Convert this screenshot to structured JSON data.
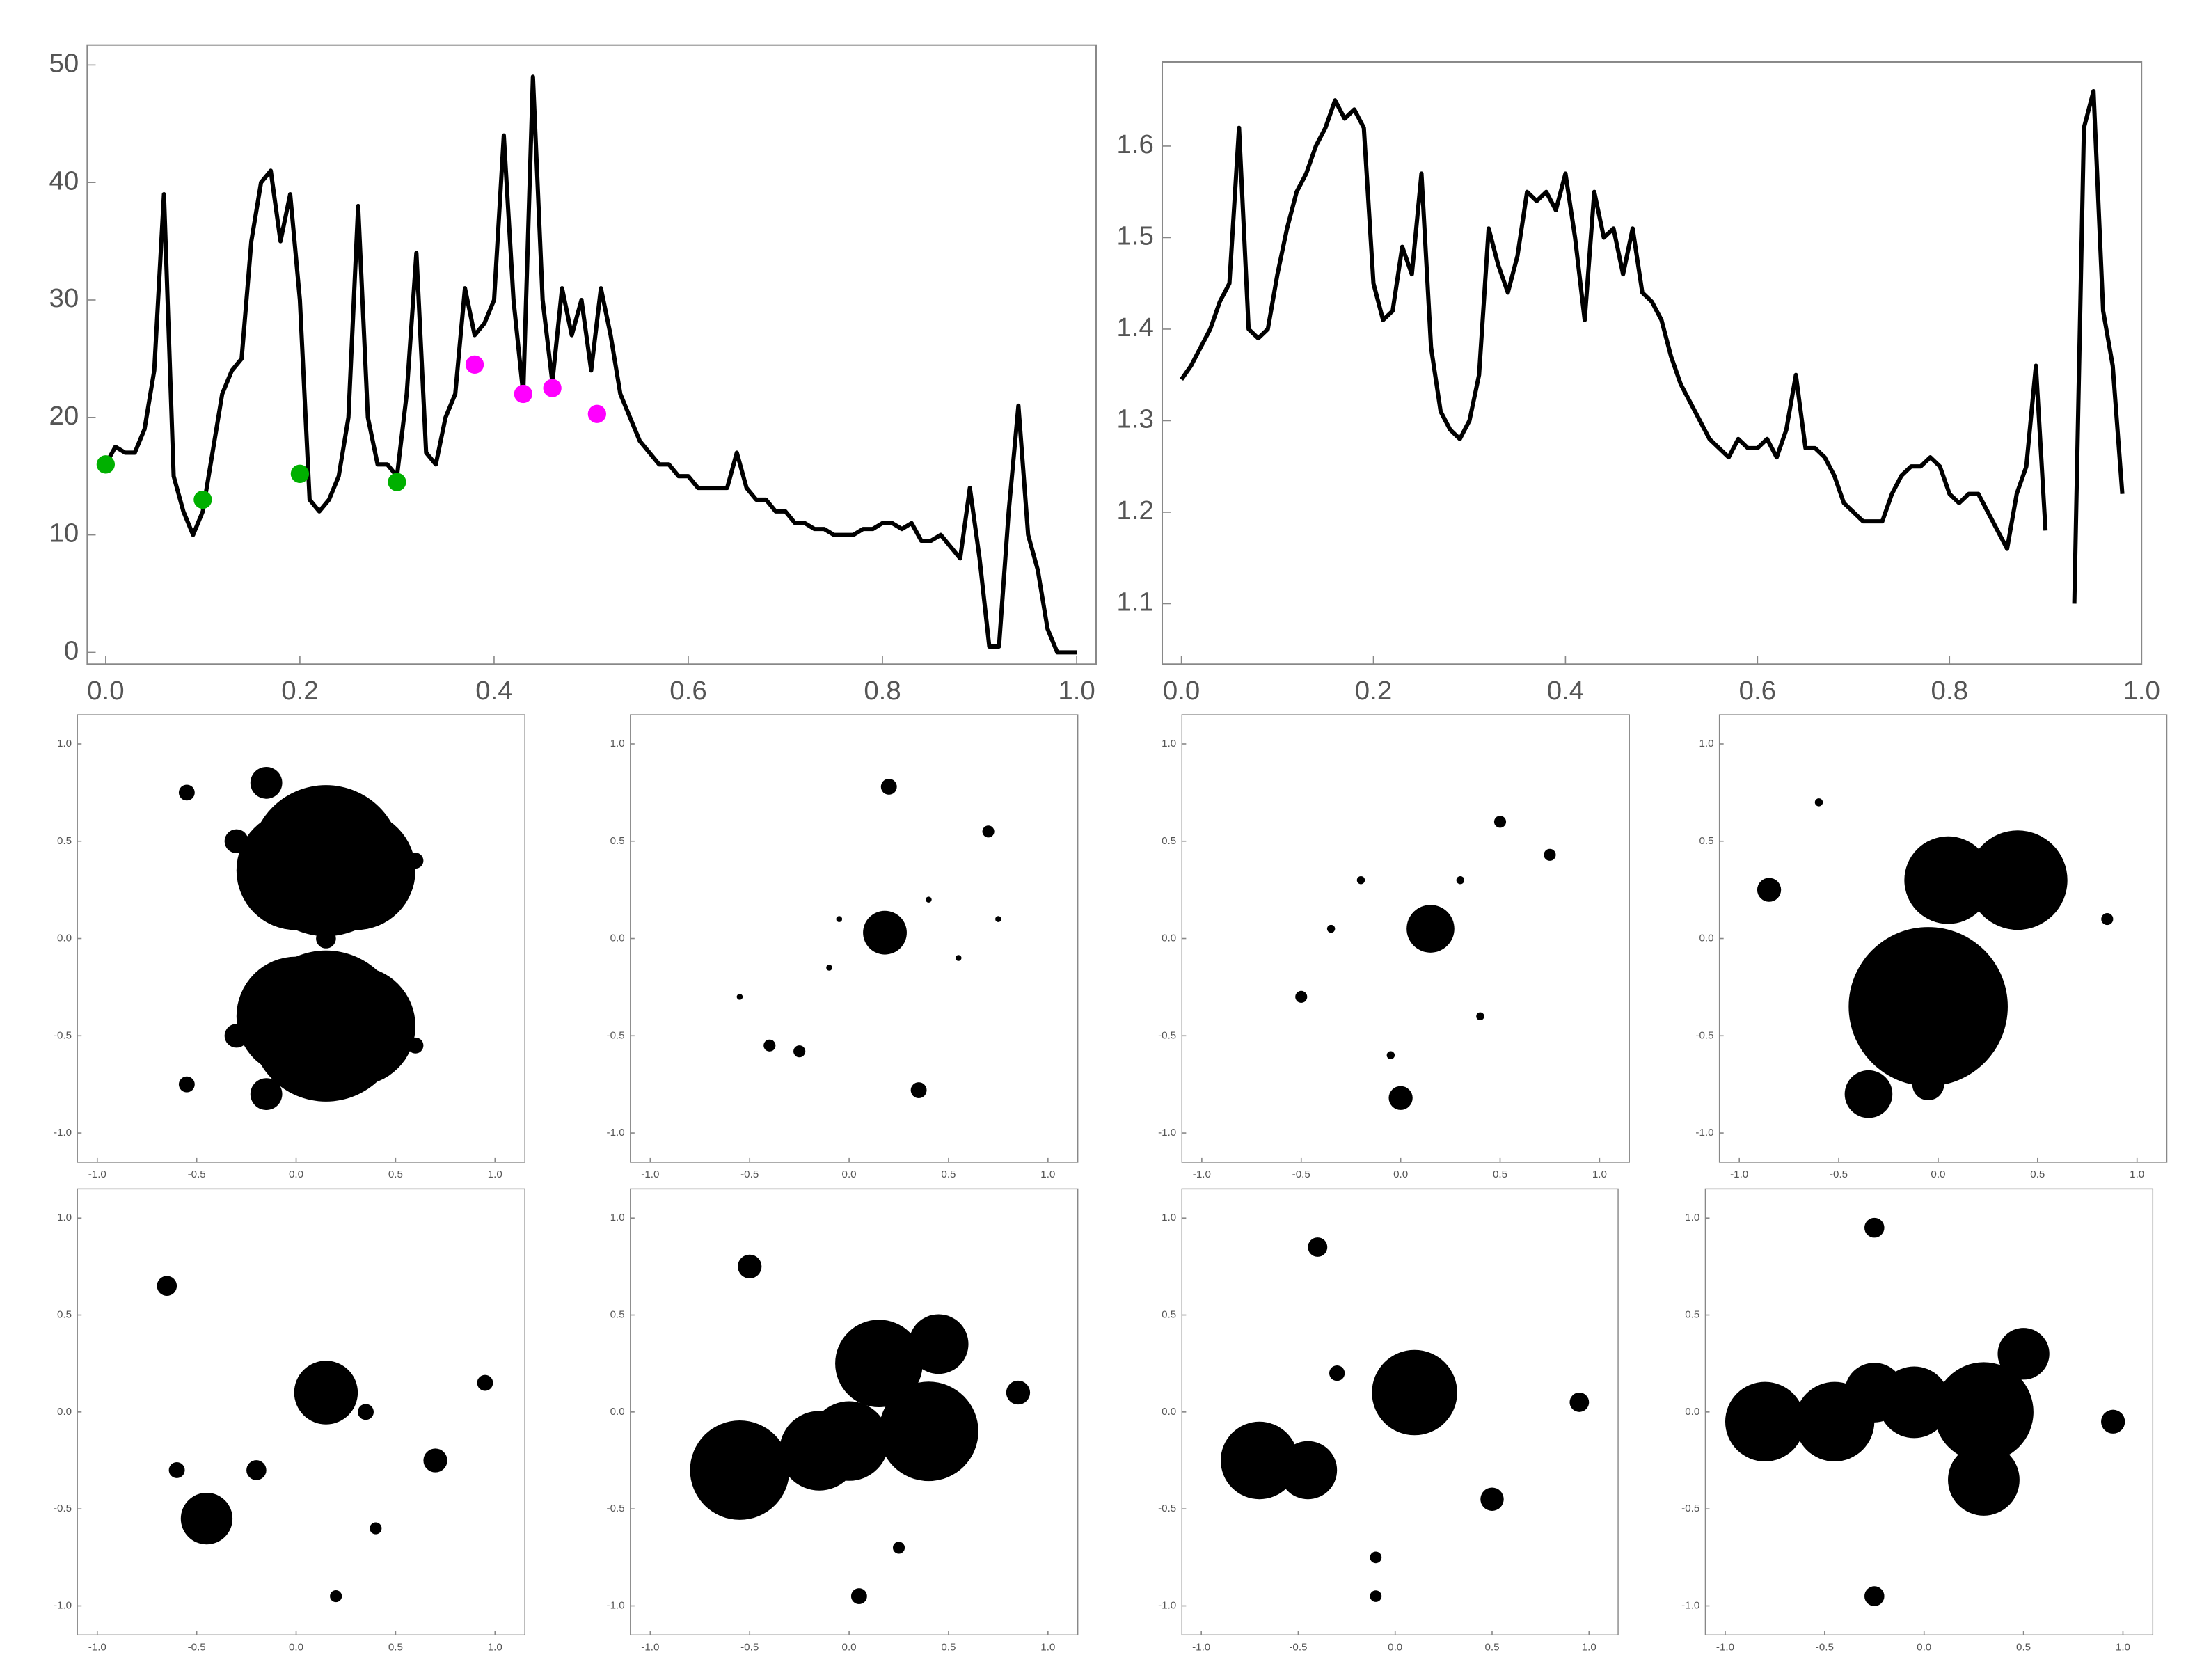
{
  "chart_data": [
    {
      "type": "line",
      "xlim": [
        -0.019,
        1.02
      ],
      "ylim": [
        -1,
        51.7
      ],
      "xticks": [
        {
          "value": 0,
          "label": "0.0"
        },
        0.2,
        0.4,
        0.6,
        0.8,
        {
          "value": 1,
          "label": "1.0"
        }
      ],
      "yticks": [
        0,
        10,
        20,
        30,
        40,
        50
      ],
      "x": [
        0,
        0.01,
        0.02,
        0.03,
        0.04,
        0.05,
        0.06,
        0.07,
        0.08,
        0.09,
        0.1,
        0.11,
        0.12,
        0.13,
        0.14,
        0.15,
        0.16,
        0.17,
        0.18,
        0.19,
        0.2,
        0.21,
        0.22,
        0.23,
        0.24,
        0.25,
        0.26,
        0.27,
        0.28,
        0.29,
        0.3,
        0.31,
        0.32,
        0.33,
        0.34,
        0.35,
        0.36,
        0.37,
        0.38,
        0.39,
        0.4,
        0.41,
        0.42,
        0.43,
        0.44,
        0.45,
        0.46,
        0.47,
        0.48,
        0.49,
        0.5,
        0.51,
        0.52,
        0.53,
        0.54,
        0.55,
        0.56,
        0.57,
        0.58,
        0.59,
        0.6,
        0.61,
        0.62,
        0.63,
        0.64,
        0.65,
        0.66,
        0.67,
        0.68,
        0.69,
        0.7,
        0.71,
        0.72,
        0.73,
        0.74,
        0.75,
        0.76,
        0.77,
        0.78,
        0.79,
        0.8,
        0.81,
        0.82,
        0.83,
        0.84,
        0.85,
        0.86,
        0.87,
        0.88,
        0.89,
        0.9,
        0.91,
        0.92,
        0.93,
        0.94,
        0.95,
        0.96,
        0.97,
        0.98,
        0.99,
        1
      ],
      "series": [
        {
          "color": "#000000",
          "values": [
            16,
            17.5,
            17,
            17,
            19,
            24,
            39,
            15,
            12,
            10,
            12,
            17,
            22,
            24,
            25,
            35,
            40,
            41,
            35,
            39,
            30,
            13,
            12,
            13,
            15,
            20,
            38,
            20,
            16,
            16,
            15,
            22,
            34,
            17,
            16,
            20,
            22,
            31,
            27,
            28,
            30,
            44,
            30,
            22,
            49,
            30,
            23,
            31,
            27,
            30,
            24,
            31,
            27,
            22,
            20,
            18,
            17,
            16,
            16,
            15,
            15,
            14,
            14,
            14,
            14,
            17,
            14,
            13,
            13,
            12,
            12,
            11,
            11,
            10.5,
            10.5,
            10,
            10,
            10,
            10.5,
            10.5,
            11,
            11,
            10.5,
            11,
            9.5,
            9.5,
            10,
            9,
            8,
            14,
            8,
            0.5,
            0.5,
            12,
            21,
            10,
            7,
            2,
            0,
            0,
            0
          ]
        }
      ],
      "points": [
        {
          "color": "#00b000",
          "x": [
            0,
            0.1,
            0.2,
            0.3
          ],
          "values": [
            16,
            13,
            15.2,
            14.5
          ]
        },
        {
          "color": "#ff00ff",
          "x": [
            0.38,
            0.43,
            0.46,
            0.506
          ],
          "values": [
            24.5,
            22,
            22.5,
            20.3
          ]
        }
      ]
    },
    {
      "type": "line",
      "xlim": [
        -0.02,
        1.0
      ],
      "ylim": [
        1.034,
        1.692
      ],
      "xticks": [
        {
          "value": 0,
          "label": "0.0"
        },
        0.2,
        0.4,
        0.6,
        0.8,
        {
          "value": 1,
          "label": "1.0"
        }
      ],
      "yticks": [
        1.1,
        1.2,
        1.3,
        1.4,
        1.5,
        1.6
      ],
      "x": [
        0,
        0.01,
        0.02,
        0.03,
        0.04,
        0.05,
        0.06,
        0.07,
        0.08,
        0.09,
        0.1,
        0.11,
        0.12,
        0.13,
        0.14,
        0.15,
        0.16,
        0.17,
        0.18,
        0.19,
        0.2,
        0.21,
        0.22,
        0.23,
        0.24,
        0.25,
        0.26,
        0.27,
        0.28,
        0.29,
        0.3,
        0.31,
        0.32,
        0.33,
        0.34,
        0.35,
        0.36,
        0.37,
        0.38,
        0.39,
        0.4,
        0.41,
        0.42,
        0.43,
        0.44,
        0.45,
        0.46,
        0.47,
        0.48,
        0.49,
        0.5,
        0.51,
        0.52,
        0.53,
        0.54,
        0.55,
        0.56,
        0.57,
        0.58,
        0.59,
        0.6,
        0.61,
        0.62,
        0.63,
        0.64,
        0.65,
        0.66,
        0.67,
        0.68,
        0.69,
        0.7,
        0.71,
        0.72,
        0.73,
        0.74,
        0.75,
        0.76,
        0.77,
        0.78,
        0.79,
        0.8,
        0.81,
        0.82,
        0.83,
        0.84,
        0.85,
        0.86,
        0.87,
        0.88,
        0.89,
        0.9,
        0.91,
        0.92,
        0.93,
        0.94,
        0.95,
        0.96,
        0.97,
        0.98,
        0.99,
        1
      ],
      "series": [
        {
          "color": "#000000",
          "values": [
            1.345,
            1.36,
            1.38,
            1.4,
            1.43,
            1.45,
            1.62,
            1.4,
            1.39,
            1.4,
            1.46,
            1.51,
            1.55,
            1.57,
            1.6,
            1.62,
            1.65,
            1.63,
            1.64,
            1.62,
            1.45,
            1.41,
            1.42,
            1.49,
            1.46,
            1.57,
            1.38,
            1.31,
            1.29,
            1.28,
            1.3,
            1.35,
            1.51,
            1.47,
            1.44,
            1.48,
            1.55,
            1.54,
            1.55,
            1.53,
            1.57,
            1.5,
            1.41,
            1.55,
            1.5,
            1.51,
            1.46,
            1.51,
            1.44,
            1.43,
            1.41,
            1.37,
            1.34,
            1.32,
            1.3,
            1.28,
            1.27,
            1.26,
            1.28,
            1.27,
            1.27,
            1.28,
            1.26,
            1.29,
            1.35,
            1.27,
            1.27,
            1.26,
            1.24,
            1.21,
            1.2,
            1.19,
            1.19,
            1.19,
            1.22,
            1.24,
            1.25,
            1.25,
            1.26,
            1.25,
            1.22,
            1.21,
            1.22,
            1.22,
            1.2,
            1.18,
            1.16,
            1.22,
            1.25,
            1.36,
            1.18,
            null,
            null,
            1.1,
            1.62,
            1.66,
            1.42,
            1.36,
            1.22,
            null,
            null
          ]
        }
      ]
    },
    {
      "type": "scatter",
      "xlim": [
        -1.1,
        1.15
      ],
      "ylim": [
        -1.15,
        1.15
      ],
      "xticks": [
        {
          "value": -1,
          "label": "-1.0"
        },
        -0.5,
        {
          "value": 0,
          "label": "0.0"
        },
        0.5,
        {
          "value": 1,
          "label": "1.0"
        }
      ],
      "yticks": [
        {
          "value": -1,
          "label": "-1.0"
        },
        -0.5,
        {
          "value": 0,
          "label": "0.0"
        },
        0.5,
        {
          "value": 1,
          "label": "1.0"
        }
      ],
      "x": [
        0.15,
        0.0,
        0.3,
        0.15,
        0.0,
        0.3,
        -0.15,
        -0.15,
        -0.55,
        -0.55,
        0.6,
        0.6,
        -0.3,
        -0.3,
        0.15
      ],
      "y": [
        0.4,
        0.35,
        0.35,
        -0.45,
        -0.4,
        -0.45,
        0.8,
        -0.8,
        0.75,
        -0.75,
        0.4,
        -0.55,
        0.5,
        -0.5,
        0.0
      ],
      "sizes": [
        0.38,
        0.3,
        0.3,
        0.38,
        0.3,
        0.3,
        0.08,
        0.08,
        0.04,
        0.04,
        0.04,
        0.04,
        0.06,
        0.06,
        0.05
      ]
    },
    {
      "type": "scatter",
      "xlim": [
        -1.1,
        1.15
      ],
      "ylim": [
        -1.15,
        1.15
      ],
      "xticks": [
        {
          "value": -1,
          "label": "-1.0"
        },
        -0.5,
        {
          "value": 0,
          "label": "0.0"
        },
        0.5,
        {
          "value": 1,
          "label": "1.0"
        }
      ],
      "yticks": [
        {
          "value": -1,
          "label": "-1.0"
        },
        -0.5,
        {
          "value": 0,
          "label": "0.0"
        },
        0.5,
        {
          "value": 1,
          "label": "1.0"
        }
      ],
      "x": [
        0.18,
        0.35,
        0.2,
        0.7,
        -0.4,
        -0.25,
        -0.05,
        0.4,
        -0.1,
        0.55,
        -0.55,
        0.75
      ],
      "y": [
        0.03,
        -0.78,
        0.78,
        0.55,
        -0.55,
        -0.58,
        0.1,
        0.2,
        -0.15,
        -0.1,
        -0.3,
        0.1
      ],
      "sizes": [
        0.11,
        0.04,
        0.04,
        0.03,
        0.03,
        0.03,
        0.015,
        0.015,
        0.015,
        0.015,
        0.015,
        0.015
      ]
    },
    {
      "type": "scatter",
      "xlim": [
        -1.1,
        1.15
      ],
      "ylim": [
        -1.15,
        1.15
      ],
      "xticks": [
        {
          "value": -1,
          "label": "-1.0"
        },
        -0.5,
        {
          "value": 0,
          "label": "0.0"
        },
        0.5,
        {
          "value": 1,
          "label": "1.0"
        }
      ],
      "yticks": [
        {
          "value": -1,
          "label": "-1.0"
        },
        -0.5,
        {
          "value": 0,
          "label": "0.0"
        },
        0.5,
        {
          "value": 1,
          "label": "1.0"
        }
      ],
      "x": [
        0.15,
        0.0,
        0.75,
        -0.5,
        0.5,
        -0.2,
        0.4,
        -0.05,
        0.3,
        -0.35
      ],
      "y": [
        0.05,
        -0.82,
        0.43,
        -0.3,
        0.6,
        0.3,
        -0.4,
        -0.6,
        0.3,
        0.05
      ],
      "sizes": [
        0.12,
        0.06,
        0.03,
        0.03,
        0.03,
        0.02,
        0.02,
        0.02,
        0.02,
        0.02
      ]
    },
    {
      "type": "scatter",
      "xlim": [
        -1.1,
        1.15
      ],
      "ylim": [
        -1.15,
        1.15
      ],
      "xticks": [
        {
          "value": -1,
          "label": "-1.0"
        },
        -0.5,
        {
          "value": 0,
          "label": "0.0"
        },
        0.5,
        {
          "value": 1,
          "label": "1.0"
        }
      ],
      "yticks": [
        {
          "value": -1,
          "label": "-1.0"
        },
        -0.5,
        {
          "value": 0,
          "label": "0.0"
        },
        0.5,
        {
          "value": 1,
          "label": "1.0"
        }
      ],
      "x": [
        -0.05,
        0.05,
        0.4,
        -0.35,
        -0.05,
        -0.85,
        -0.6,
        0.85
      ],
      "y": [
        -0.35,
        0.3,
        0.3,
        -0.8,
        -0.75,
        0.25,
        0.7,
        0.1
      ],
      "sizes": [
        0.4,
        0.22,
        0.25,
        0.12,
        0.08,
        0.06,
        0.02,
        0.03
      ]
    },
    {
      "type": "scatter",
      "xlim": [
        -1.1,
        1.15
      ],
      "ylim": [
        -1.15,
        1.15
      ],
      "xticks": [
        {
          "value": -1,
          "label": "-1.0"
        },
        -0.5,
        {
          "value": 0,
          "label": "0.0"
        },
        0.5,
        {
          "value": 1,
          "label": "1.0"
        }
      ],
      "yticks": [
        {
          "value": -1,
          "label": "-1.0"
        },
        -0.5,
        {
          "value": 0,
          "label": "0.0"
        },
        0.5,
        {
          "value": 1,
          "label": "1.0"
        }
      ],
      "x": [
        0.15,
        -0.45,
        -0.65,
        0.7,
        0.35,
        0.95,
        -0.6,
        0.2,
        0.4,
        -0.2
      ],
      "y": [
        0.1,
        -0.55,
        0.65,
        -0.25,
        0.0,
        0.15,
        -0.3,
        -0.95,
        -0.6,
        -0.3
      ],
      "sizes": [
        0.16,
        0.13,
        0.05,
        0.06,
        0.04,
        0.04,
        0.04,
        0.03,
        0.03,
        0.05
      ]
    },
    {
      "type": "scatter",
      "xlim": [
        -1.1,
        1.15
      ],
      "ylim": [
        -1.15,
        1.15
      ],
      "xticks": [
        {
          "value": -1,
          "label": "-1.0"
        },
        -0.5,
        {
          "value": 0,
          "label": "0.0"
        },
        0.5,
        {
          "value": 1,
          "label": "1.0"
        }
      ],
      "yticks": [
        {
          "value": -1,
          "label": "-1.0"
        },
        -0.5,
        {
          "value": 0,
          "label": "0.0"
        },
        0.5,
        {
          "value": 1,
          "label": "1.0"
        }
      ],
      "x": [
        -0.55,
        -0.15,
        0.15,
        0.45,
        0.4,
        0.0,
        -0.5,
        0.85,
        0.05,
        0.25
      ],
      "y": [
        -0.3,
        -0.2,
        0.25,
        0.35,
        -0.1,
        -0.15,
        0.75,
        0.1,
        -0.95,
        -0.7
      ],
      "sizes": [
        0.25,
        0.2,
        0.22,
        0.15,
        0.25,
        0.2,
        0.06,
        0.06,
        0.04,
        0.03
      ]
    },
    {
      "type": "scatter",
      "xlim": [
        -1.1,
        1.15
      ],
      "ylim": [
        -1.15,
        1.15
      ],
      "xticks": [
        {
          "value": -1,
          "label": "-1.0"
        },
        -0.5,
        {
          "value": 0,
          "label": "0.0"
        },
        0.5,
        {
          "value": 1,
          "label": "1.0"
        }
      ],
      "yticks": [
        {
          "value": -1,
          "label": "-1.0"
        },
        -0.5,
        {
          "value": 0,
          "label": "0.0"
        },
        0.5,
        {
          "value": 1,
          "label": "1.0"
        }
      ],
      "x": [
        0.1,
        -0.7,
        -0.45,
        -0.4,
        0.95,
        0.5,
        -0.1,
        -0.1,
        -0.3
      ],
      "y": [
        0.1,
        -0.25,
        -0.3,
        0.85,
        0.05,
        -0.45,
        -0.95,
        -0.75,
        0.2
      ],
      "sizes": [
        0.22,
        0.2,
        0.15,
        0.05,
        0.05,
        0.06,
        0.03,
        0.03,
        0.04
      ]
    },
    {
      "type": "scatter",
      "xlim": [
        -1.1,
        1.15
      ],
      "ylim": [
        -1.15,
        1.15
      ],
      "xticks": [
        {
          "value": -1,
          "label": "-1.0"
        },
        -0.5,
        {
          "value": 0,
          "label": "0.0"
        },
        0.5,
        {
          "value": 1,
          "label": "1.0"
        }
      ],
      "yticks": [
        {
          "value": -1,
          "label": "-1.0"
        },
        -0.5,
        {
          "value": 0,
          "label": "0.0"
        },
        0.5,
        {
          "value": 1,
          "label": "1.0"
        }
      ],
      "x": [
        -0.8,
        -0.45,
        -0.05,
        0.3,
        0.3,
        0.5,
        -0.25,
        0.95,
        -0.25,
        -0.25
      ],
      "y": [
        -0.05,
        -0.05,
        0.05,
        0.0,
        -0.35,
        0.3,
        0.1,
        -0.05,
        0.95,
        -0.95
      ],
      "sizes": [
        0.2,
        0.2,
        0.18,
        0.25,
        0.18,
        0.13,
        0.15,
        0.06,
        0.05,
        0.05
      ]
    }
  ]
}
